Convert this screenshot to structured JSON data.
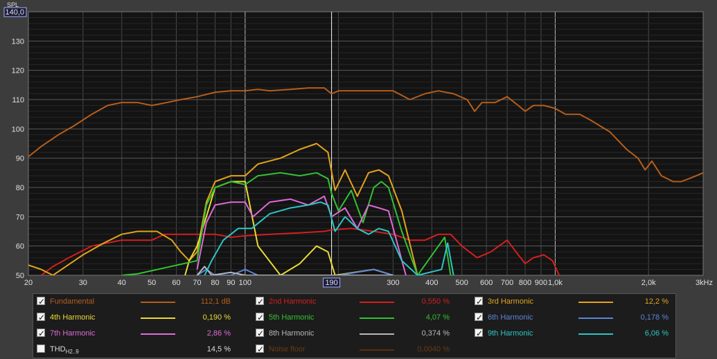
{
  "chart_data": {
    "type": "line",
    "x_scale": "log",
    "xlim": [
      20,
      3000
    ],
    "ylim": [
      50,
      140
    ],
    "ylabel": "SPL",
    "y_ticks": [
      "140,0",
      "130",
      "120",
      "110",
      "100",
      "90",
      "80",
      "70",
      "60",
      "50"
    ],
    "x_ticks": [
      "20",
      "30",
      "40",
      "50",
      "60",
      "70",
      "80",
      "90",
      "100",
      "190",
      "300",
      "400",
      "500",
      "600",
      "700",
      "800",
      "900",
      "1,0k",
      "2,0k",
      "3kHz"
    ],
    "grid": true,
    "cursor_x": 190,
    "series": [
      {
        "name": "Fundamental",
        "color": "#b65e1c",
        "points": [
          [
            20,
            90.5
          ],
          [
            22,
            94
          ],
          [
            25,
            98
          ],
          [
            28,
            101
          ],
          [
            32,
            105
          ],
          [
            36,
            108
          ],
          [
            40,
            109
          ],
          [
            45,
            109
          ],
          [
            50,
            108
          ],
          [
            56,
            109
          ],
          [
            62,
            110
          ],
          [
            70,
            111
          ],
          [
            80,
            112.5
          ],
          [
            90,
            113
          ],
          [
            100,
            113
          ],
          [
            110,
            113.5
          ],
          [
            120,
            113
          ],
          [
            140,
            113.5
          ],
          [
            160,
            114
          ],
          [
            180,
            114
          ],
          [
            190,
            112
          ],
          [
            200,
            113
          ],
          [
            230,
            113
          ],
          [
            260,
            113
          ],
          [
            300,
            113
          ],
          [
            340,
            110
          ],
          [
            380,
            112
          ],
          [
            420,
            113
          ],
          [
            470,
            112
          ],
          [
            520,
            110
          ],
          [
            550,
            106
          ],
          [
            580,
            109
          ],
          [
            640,
            109
          ],
          [
            700,
            111
          ],
          [
            760,
            108
          ],
          [
            800,
            106
          ],
          [
            850,
            108
          ],
          [
            920,
            108
          ],
          [
            1000,
            107
          ],
          [
            1080,
            105
          ],
          [
            1200,
            105
          ],
          [
            1300,
            103
          ],
          [
            1500,
            99
          ],
          [
            1700,
            93
          ],
          [
            1850,
            90
          ],
          [
            1950,
            86
          ],
          [
            2050,
            89
          ],
          [
            2200,
            84
          ],
          [
            2400,
            82
          ],
          [
            2550,
            82
          ],
          [
            2700,
            83
          ],
          [
            2850,
            84
          ],
          [
            3000,
            85
          ]
        ]
      },
      {
        "name": "2nd Harmonic",
        "color": "#d41f1f",
        "points": [
          [
            22,
            50
          ],
          [
            24,
            53
          ],
          [
            27,
            56
          ],
          [
            32,
            60
          ],
          [
            40,
            62
          ],
          [
            50,
            62
          ],
          [
            55,
            64
          ],
          [
            60,
            64
          ],
          [
            70,
            64
          ],
          [
            80,
            64
          ],
          [
            90,
            63
          ],
          [
            100,
            63.5
          ],
          [
            120,
            64
          ],
          [
            150,
            64.5
          ],
          [
            180,
            65
          ],
          [
            190,
            65.5
          ],
          [
            220,
            66
          ],
          [
            260,
            65
          ],
          [
            300,
            64
          ],
          [
            340,
            62
          ],
          [
            380,
            62
          ],
          [
            420,
            64
          ],
          [
            460,
            64
          ],
          [
            500,
            60
          ],
          [
            560,
            56
          ],
          [
            620,
            58
          ],
          [
            700,
            62
          ],
          [
            760,
            57
          ],
          [
            800,
            54
          ],
          [
            850,
            56
          ],
          [
            920,
            57
          ],
          [
            980,
            55
          ],
          [
            1030,
            50
          ]
        ]
      },
      {
        "name": "3rd Harmonic",
        "color": "#e3a41c",
        "points": [
          [
            20,
            53.5
          ],
          [
            22,
            52
          ],
          [
            24,
            50
          ],
          [
            30,
            57
          ],
          [
            35,
            61
          ],
          [
            40,
            64
          ],
          [
            45,
            65
          ],
          [
            52,
            65
          ],
          [
            58,
            62
          ],
          [
            62,
            58
          ],
          [
            66,
            55
          ],
          [
            70,
            58
          ],
          [
            75,
            75
          ],
          [
            80,
            82
          ],
          [
            90,
            84
          ],
          [
            100,
            84
          ],
          [
            110,
            88
          ],
          [
            130,
            90
          ],
          [
            150,
            93
          ],
          [
            170,
            95
          ],
          [
            185,
            92
          ],
          [
            195,
            79
          ],
          [
            210,
            86
          ],
          [
            230,
            77
          ],
          [
            250,
            85
          ],
          [
            270,
            86
          ],
          [
            290,
            84
          ],
          [
            320,
            72
          ],
          [
            360,
            50
          ]
        ]
      },
      {
        "name": "4th Harmonic",
        "color": "#e9dc34",
        "points": [
          [
            64,
            50
          ],
          [
            66,
            55
          ],
          [
            70,
            60
          ],
          [
            75,
            70
          ],
          [
            80,
            80
          ],
          [
            90,
            82
          ],
          [
            100,
            82
          ],
          [
            110,
            60
          ],
          [
            130,
            50
          ],
          [
            150,
            54
          ],
          [
            170,
            60
          ],
          [
            185,
            58
          ],
          [
            195,
            50
          ],
          [
            260,
            52
          ],
          [
            300,
            50
          ]
        ]
      },
      {
        "name": "5th Harmonic",
        "color": "#33c233",
        "points": [
          [
            40,
            50
          ],
          [
            45,
            50.5
          ],
          [
            70,
            55
          ],
          [
            75,
            74
          ],
          [
            80,
            80
          ],
          [
            90,
            82
          ],
          [
            100,
            81
          ],
          [
            110,
            84
          ],
          [
            130,
            85
          ],
          [
            150,
            84
          ],
          [
            170,
            85
          ],
          [
            185,
            83
          ],
          [
            190,
            78
          ],
          [
            200,
            72
          ],
          [
            220,
            79
          ],
          [
            240,
            68
          ],
          [
            260,
            80
          ],
          [
            275,
            82
          ],
          [
            290,
            80
          ],
          [
            320,
            65
          ],
          [
            360,
            50
          ],
          [
            440,
            63
          ],
          [
            460,
            50
          ]
        ]
      },
      {
        "name": "6th Harmonic",
        "color": "#5c86d8",
        "points": [
          [
            70,
            50
          ],
          [
            75,
            52
          ],
          [
            80,
            50
          ],
          [
            90,
            50
          ],
          [
            100,
            52
          ],
          [
            110,
            50
          ],
          [
            200,
            50
          ],
          [
            260,
            52
          ],
          [
            300,
            50
          ]
        ]
      },
      {
        "name": "7th Harmonic",
        "color": "#df6bd8",
        "points": [
          [
            70,
            52
          ],
          [
            75,
            68
          ],
          [
            80,
            74
          ],
          [
            90,
            75
          ],
          [
            100,
            75
          ],
          [
            106,
            70
          ],
          [
            120,
            75
          ],
          [
            140,
            76
          ],
          [
            160,
            74
          ],
          [
            180,
            77
          ],
          [
            190,
            70
          ],
          [
            210,
            73
          ],
          [
            230,
            66
          ],
          [
            250,
            74
          ],
          [
            270,
            73
          ],
          [
            290,
            72
          ],
          [
            330,
            50
          ]
        ]
      },
      {
        "name": "8th Harmonic",
        "color": "#b9b9b9",
        "points": [
          [
            70,
            50
          ],
          [
            74,
            53
          ],
          [
            78,
            50
          ],
          [
            90,
            51
          ],
          [
            100,
            50
          ],
          [
            300,
            50
          ]
        ]
      },
      {
        "name": "9th Harmonic",
        "color": "#2dc6c6",
        "points": [
          [
            74,
            50
          ],
          [
            78,
            55
          ],
          [
            85,
            62
          ],
          [
            95,
            66
          ],
          [
            105,
            66
          ],
          [
            120,
            71
          ],
          [
            140,
            73
          ],
          [
            160,
            74
          ],
          [
            175,
            75
          ],
          [
            185,
            74
          ],
          [
            195,
            65
          ],
          [
            210,
            70
          ],
          [
            230,
            66
          ],
          [
            250,
            64
          ],
          [
            270,
            66
          ],
          [
            290,
            65
          ],
          [
            320,
            55
          ],
          [
            360,
            50
          ],
          [
            430,
            52
          ],
          [
            450,
            61
          ],
          [
            470,
            50
          ]
        ]
      }
    ]
  },
  "legend": [
    {
      "key": "fund",
      "checked": true,
      "label": "Fundamental",
      "value": "112,1 dB",
      "color": "#b65e1c"
    },
    {
      "key": "h2",
      "checked": true,
      "label": "2nd Harmonic",
      "value": "0,550 %",
      "color": "#d41f1f"
    },
    {
      "key": "h3",
      "checked": true,
      "label": "3rd Harmonic",
      "value": "12,2 %",
      "color": "#e3a41c"
    },
    {
      "key": "h4",
      "checked": true,
      "label": "4th Harmonic",
      "value": "0,190 %",
      "color": "#e9dc34"
    },
    {
      "key": "h5",
      "checked": true,
      "label": "5th Harmonic",
      "value": "4,07 %",
      "color": "#33c233"
    },
    {
      "key": "h6",
      "checked": true,
      "label": "6th Harmonic",
      "value": "0,178 %",
      "color": "#5c86d8"
    },
    {
      "key": "h7",
      "checked": true,
      "label": "7th Harmonic",
      "value": "2,86 %",
      "color": "#df6bd8"
    },
    {
      "key": "h8",
      "checked": true,
      "label": "8th Harmonic",
      "value": "0,374 %",
      "color": "#b9b9b9"
    },
    {
      "key": "h9",
      "checked": true,
      "label": "9th Harmonic",
      "value": "6,06 %",
      "color": "#2dc6c6"
    },
    {
      "key": "thd",
      "checked": false,
      "label": "THD",
      "label_sub": "H2..9",
      "value": "14,5 %",
      "color": ""
    },
    {
      "key": "noise",
      "checked": true,
      "label": "Noise floor",
      "value": "0,0040 %",
      "color": "#5a2f0d"
    }
  ]
}
